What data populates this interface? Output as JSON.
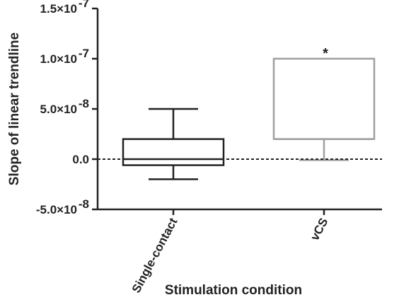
{
  "chart_data": {
    "type": "box",
    "xlabel": "Stimulation condition",
    "ylabel": "Slope of  linear trendline",
    "ylim": [
      -5e-08,
      1.5e-07
    ],
    "yticks": [
      {
        "value": -5e-08,
        "label": "-5.0×10",
        "exp": "-8"
      },
      {
        "value": 0,
        "label": "0.0",
        "exp": ""
      },
      {
        "value": 5e-08,
        "label": "5.0×10",
        "exp": "-8"
      },
      {
        "value": 1e-07,
        "label": "1.0×10",
        "exp": "-7"
      },
      {
        "value": 1.5e-07,
        "label": "1.5×10",
        "exp": "-7"
      }
    ],
    "categories": [
      "Single-contact",
      "vCS"
    ],
    "boxes": [
      {
        "category": "Single-contact",
        "whisker_low": -2e-08,
        "q1": -6e-09,
        "median": 0,
        "q3": 2e-08,
        "whisker_high": 5e-08,
        "color": "#222222"
      },
      {
        "category": "vCS",
        "whisker_low": -1e-09,
        "q1": 2e-08,
        "median": 2e-08,
        "q3": 1e-07,
        "whisker_high": 1e-07,
        "color": "#a0a0a0",
        "annotation": "*"
      }
    ],
    "reference_line": {
      "y": 0,
      "style": "dashed"
    }
  }
}
